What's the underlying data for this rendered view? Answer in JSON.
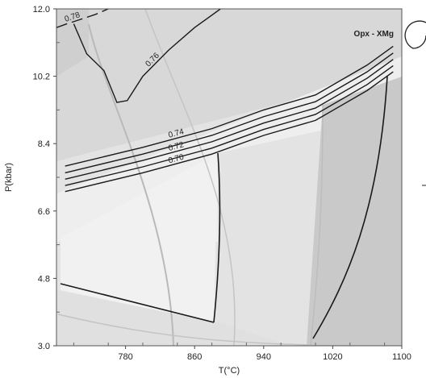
{
  "chart_data": {
    "type": "contour",
    "title": "Opx - XMg",
    "xlabel": "T(°C)",
    "ylabel": "P(kbar)",
    "xlim": [
      700,
      1100
    ],
    "ylim": [
      3.0,
      12.0
    ],
    "xticks": [
      "780",
      "860",
      "940",
      "1020",
      "1100"
    ],
    "yticks": [
      "3.0",
      "4.8",
      "6.6",
      "8.4",
      "10.2",
      "12.0"
    ],
    "grid": false,
    "contours": [
      {
        "label": "0.78",
        "points": [
          [
            700,
            11.5
          ],
          [
            712,
            11.6
          ],
          [
            728,
            11.72
          ],
          [
            745,
            11.85
          ],
          [
            760,
            12.0
          ]
        ]
      },
      {
        "label": "0.76",
        "points": [
          [
            720,
            11.6
          ],
          [
            735,
            10.8
          ],
          [
            755,
            10.35
          ],
          [
            770,
            9.5
          ],
          [
            782,
            9.55
          ],
          [
            800,
            10.2
          ],
          [
            830,
            10.9
          ],
          [
            860,
            11.5
          ],
          [
            890,
            12.0
          ]
        ]
      },
      {
        "label": "0.74",
        "points": [
          [
            710,
            7.8
          ],
          [
            800,
            8.3
          ],
          [
            880,
            8.8
          ],
          [
            940,
            9.3
          ],
          [
            1000,
            9.7
          ],
          [
            1060,
            10.5
          ],
          [
            1090,
            11.0
          ]
        ]
      },
      {
        "label": "",
        "points": [
          [
            710,
            7.62
          ],
          [
            800,
            8.12
          ],
          [
            880,
            8.62
          ],
          [
            940,
            9.12
          ],
          [
            1000,
            9.52
          ],
          [
            1060,
            10.32
          ],
          [
            1090,
            10.82
          ]
        ]
      },
      {
        "label": "0.72",
        "points": [
          [
            710,
            7.45
          ],
          [
            800,
            7.95
          ],
          [
            880,
            8.45
          ],
          [
            940,
            8.95
          ],
          [
            1000,
            9.35
          ],
          [
            1060,
            10.15
          ],
          [
            1090,
            10.65
          ]
        ]
      },
      {
        "label": "",
        "points": [
          [
            710,
            7.28
          ],
          [
            800,
            7.78
          ],
          [
            880,
            8.28
          ],
          [
            940,
            8.78
          ],
          [
            1000,
            9.18
          ],
          [
            1060,
            9.98
          ],
          [
            1090,
            10.48
          ]
        ]
      },
      {
        "label": "0.70",
        "points": [
          [
            710,
            7.12
          ],
          [
            800,
            7.62
          ],
          [
            880,
            8.12
          ],
          [
            940,
            8.62
          ],
          [
            1000,
            9.02
          ],
          [
            1060,
            9.82
          ],
          [
            1090,
            10.32
          ]
        ]
      }
    ]
  }
}
